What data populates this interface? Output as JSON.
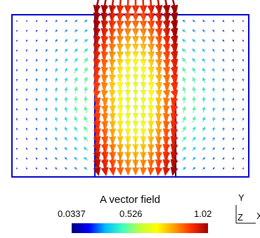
{
  "colorbar": {
    "title": "A vector field",
    "ticks": [
      "0.0337",
      "0.526",
      "1.02"
    ],
    "range": [
      0.0337,
      1.02
    ],
    "colormap": [
      "#00007f",
      "#0000ff",
      "#00bfff",
      "#40ffbf",
      "#c0ff40",
      "#ffff00",
      "#ffa000",
      "#ff3000",
      "#a00000"
    ]
  },
  "axes": {
    "y": "Y",
    "z": "Z",
    "x": "X"
  },
  "colors": {
    "frame": "#0000cc",
    "background": "#ffffff"
  },
  "view": {
    "projection": "2D",
    "field_type": "vector glyphs (cones)"
  }
}
